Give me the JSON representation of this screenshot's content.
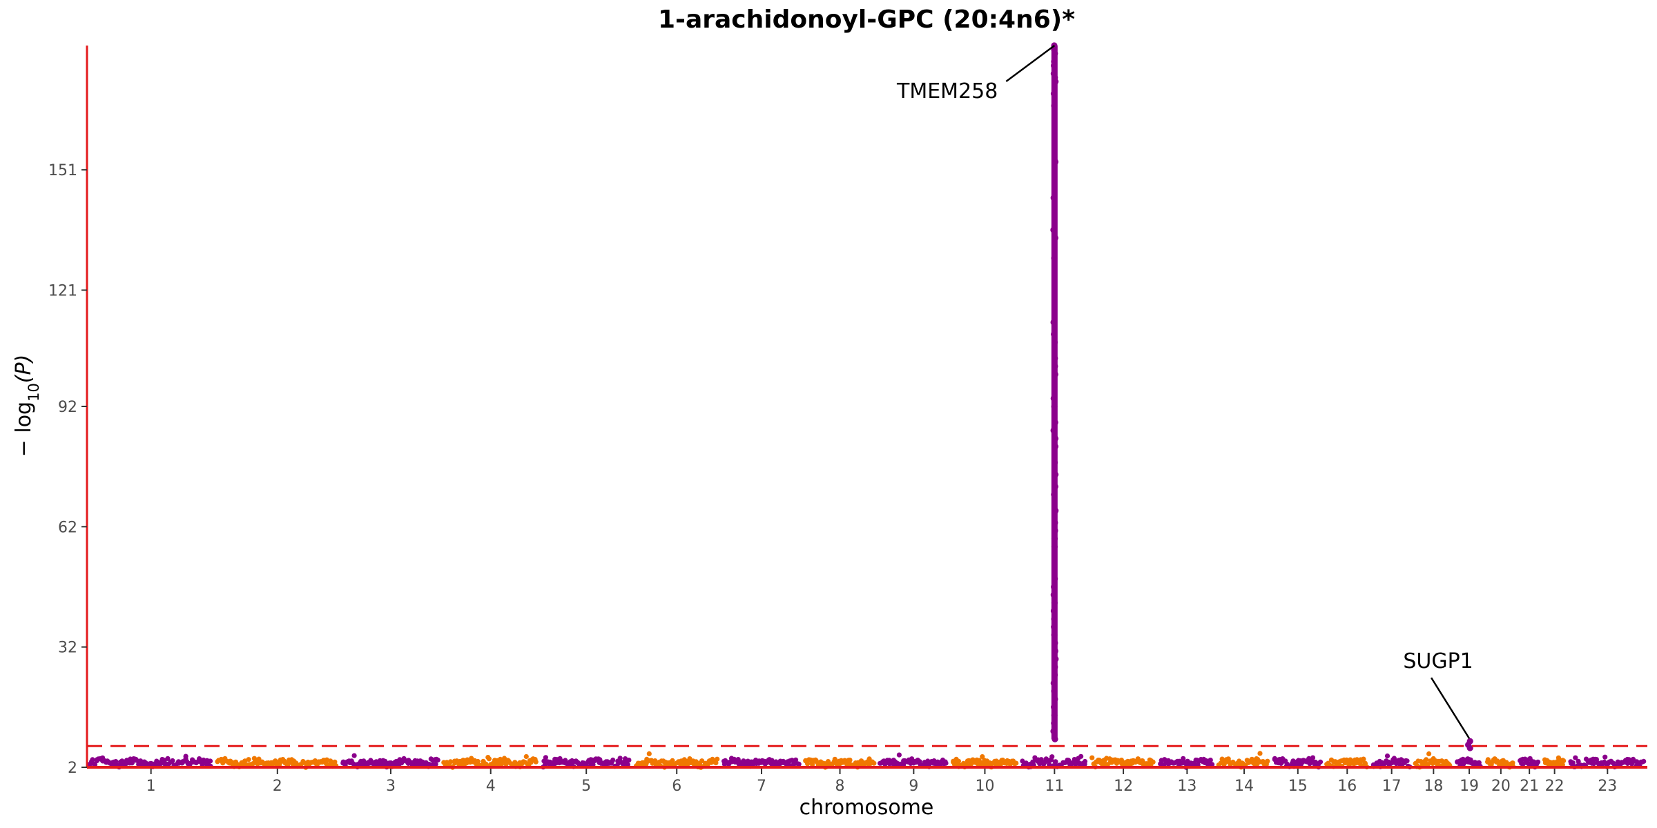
{
  "chart_data": {
    "type": "scatter",
    "title": "1-arachidonoyl-GPC (20:4n6)*",
    "xlabel": "chromosome",
    "ylabel_prefix": "− log",
    "ylabel_sub": "10",
    "ylabel_suffix": "(P)",
    "y_ticks": [
      2,
      32,
      62,
      92,
      121,
      151
    ],
    "ylim": [
      2,
      182
    ],
    "significance_threshold": 7.3,
    "grid": false,
    "legend": "none",
    "colors": {
      "odd": "#8B008B",
      "even": "#F07800",
      "threshold": "#E41A1C",
      "axis": "#E41A1C"
    },
    "chromosomes": [
      {
        "label": "1",
        "size": 249
      },
      {
        "label": "2",
        "size": 243
      },
      {
        "label": "3",
        "size": 198
      },
      {
        "label": "4",
        "size": 191
      },
      {
        "label": "5",
        "size": 181
      },
      {
        "label": "6",
        "size": 171
      },
      {
        "label": "7",
        "size": 159
      },
      {
        "label": "8",
        "size": 146
      },
      {
        "label": "9",
        "size": 141
      },
      {
        "label": "10",
        "size": 136
      },
      {
        "label": "11",
        "size": 135
      },
      {
        "label": "12",
        "size": 133
      },
      {
        "label": "13",
        "size": 115
      },
      {
        "label": "14",
        "size": 107
      },
      {
        "label": "15",
        "size": 102
      },
      {
        "label": "16",
        "size": 90
      },
      {
        "label": "17",
        "size": 83
      },
      {
        "label": "18",
        "size": 80
      },
      {
        "label": "19",
        "size": 59
      },
      {
        "label": "20",
        "size": 64
      },
      {
        "label": "21",
        "size": 47
      },
      {
        "label": "22",
        "size": 51
      },
      {
        "label": "23",
        "size": 155
      }
    ],
    "peaks": [
      {
        "chromosome": "11",
        "gene": "TMEM258",
        "max": 182,
        "values": [
          182,
          181,
          180,
          178,
          177,
          175,
          174,
          173,
          170,
          167,
          153,
          144,
          136,
          134,
          129,
          113,
          110,
          108,
          104,
          102,
          100,
          94,
          92,
          88,
          86,
          84,
          82,
          78,
          75,
          72,
          70,
          66,
          63,
          61,
          59,
          57,
          49,
          47,
          45,
          43,
          41,
          39,
          37,
          35,
          33,
          31,
          29,
          27,
          25,
          23,
          21,
          19,
          17,
          15,
          13,
          11,
          9
        ]
      },
      {
        "chromosome": "19",
        "gene": "SUGP1",
        "max": 8.5,
        "values": [
          8.5,
          7.6,
          6.8
        ]
      }
    ],
    "annotations": [
      {
        "text": "TMEM258",
        "chromosome": "11",
        "y": 182
      },
      {
        "text": "SUGP1",
        "chromosome": "19",
        "y": 8.5
      }
    ]
  }
}
